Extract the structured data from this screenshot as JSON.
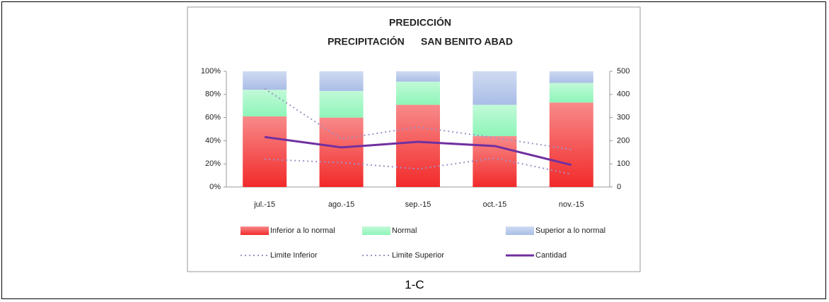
{
  "caption": "1-C",
  "chart_data": {
    "type": "bar",
    "title": "PREDICCIÓN",
    "subtitle": "PRECIPITACIÓN      SAN BENITO ABAD",
    "categories": [
      "jul.-15",
      "ago.-15",
      "sep.-15",
      "oct.-15",
      "nov.-15"
    ],
    "stacked": true,
    "ylim": [
      0,
      100
    ],
    "yticks": [
      {
        "value": 0,
        "label": "0%"
      },
      {
        "value": 20,
        "label": "20%"
      },
      {
        "value": 40,
        "label": "40%"
      },
      {
        "value": 60,
        "label": "60%"
      },
      {
        "value": 80,
        "label": "80%"
      },
      {
        "value": 100,
        "label": "100%"
      }
    ],
    "y2lim": [
      0,
      500
    ],
    "y2ticks": [
      0,
      100,
      200,
      300,
      400,
      500
    ],
    "legend": "bottom",
    "series": [
      {
        "name": "Inferior a lo normal",
        "type": "bar",
        "color": "#f22a2a",
        "values": [
          61,
          60,
          71,
          44,
          73
        ]
      },
      {
        "name": "Normal",
        "type": "bar",
        "color": "#8ef5b8",
        "values": [
          23,
          23,
          20,
          27,
          17
        ]
      },
      {
        "name": "Superior a lo normal",
        "type": "bar",
        "color": "#a9bde6",
        "values": [
          16,
          17,
          9,
          29,
          10
        ]
      },
      {
        "name": "Limite Inferior",
        "type": "line",
        "axis": "y2",
        "style": "dotted",
        "color": "#a191c8",
        "values": [
          120,
          105,
          78,
          125,
          55
        ]
      },
      {
        "name": "Limite Superior",
        "type": "line",
        "axis": "y2",
        "style": "dotted",
        "color": "#a191c8",
        "values": [
          425,
          208,
          259,
          213,
          162
        ]
      },
      {
        "name": "Cantidad",
        "type": "line",
        "axis": "y2",
        "style": "solid",
        "color": "#7030a0",
        "values": [
          216,
          171,
          195,
          177,
          95
        ]
      }
    ]
  }
}
